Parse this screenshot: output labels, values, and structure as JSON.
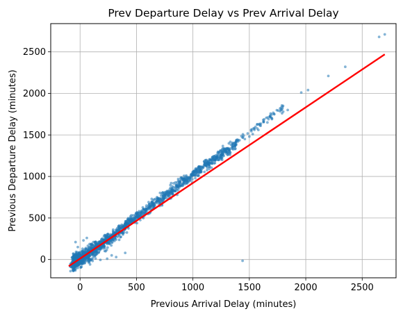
{
  "chart_data": {
    "type": "scatter",
    "title": "Prev Departure Delay vs Prev Arrival Delay",
    "xlabel": "Previous Arrival Delay (minutes)",
    "ylabel": "Previous Departure Delay (minutes)",
    "xlim": [
      -260,
      2800
    ],
    "ylim": [
      -220,
      2840
    ],
    "xticks": [
      0,
      500,
      1000,
      1500,
      2000,
      2500
    ],
    "yticks": [
      0,
      500,
      1000,
      1500,
      2000,
      2500
    ],
    "grid": true,
    "series": [
      {
        "kind": "points",
        "color": "#1f77b4",
        "opacity": 0.55,
        "trend": {
          "x0": 0,
          "y0": 20,
          "x1": 2500,
          "y1": 2500,
          "spread": 70
        },
        "outliers": [
          [
            1440,
            -15
          ],
          [
            2700,
            2710
          ],
          [
            2650,
            2680
          ],
          [
            2350,
            2320
          ],
          [
            2200,
            2210
          ],
          [
            2020,
            2040
          ],
          [
            1960,
            2010
          ],
          [
            1840,
            1800
          ],
          [
            1800,
            1780
          ],
          [
            1790,
            1760
          ],
          [
            1700,
            1690
          ],
          [
            1660,
            1650
          ],
          [
            1600,
            1610
          ],
          [
            1580,
            1560
          ],
          [
            1530,
            1510
          ],
          [
            1500,
            1480
          ],
          [
            1460,
            1450
          ],
          [
            -40,
            210
          ],
          [
            -20,
            150
          ],
          [
            30,
            230
          ],
          [
            60,
            260
          ],
          [
            240,
            10
          ],
          [
            320,
            30
          ],
          [
            280,
            50
          ],
          [
            180,
            -5
          ],
          [
            400,
            80
          ]
        ]
      },
      {
        "kind": "regression-line",
        "color": "#ff0000",
        "x": [
          -100,
          2700
        ],
        "y": [
          -80,
          2470
        ]
      }
    ]
  }
}
